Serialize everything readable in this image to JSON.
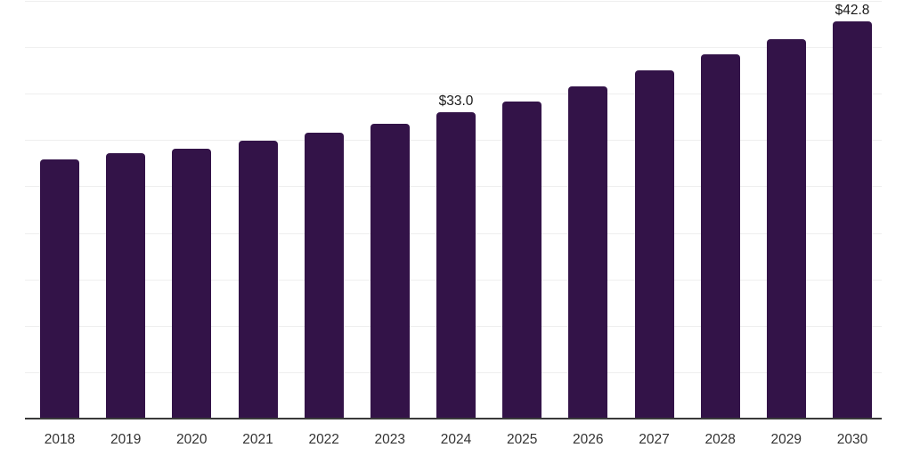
{
  "chart_data": {
    "type": "bar",
    "title": "",
    "xlabel": "",
    "ylabel": "",
    "categories": [
      "2018",
      "2019",
      "2020",
      "2021",
      "2022",
      "2023",
      "2024",
      "2025",
      "2026",
      "2027",
      "2028",
      "2029",
      "2030"
    ],
    "values": [
      27.9,
      28.6,
      29.1,
      29.9,
      30.8,
      31.8,
      33.0,
      34.2,
      35.8,
      37.5,
      39.2,
      40.9,
      42.8
    ],
    "data_labels": {
      "2024": "$33.0",
      "2030": "$42.8"
    },
    "ylim": [
      0,
      45
    ],
    "grid_step": 5,
    "grid": true,
    "legend_position": "none",
    "colors": {
      "bar": "#331348",
      "grid": "#efefef",
      "axis": "#3a3a3a",
      "value_label": "#1a1a1a",
      "tick_label": "#333333",
      "background": "#ffffff"
    }
  }
}
